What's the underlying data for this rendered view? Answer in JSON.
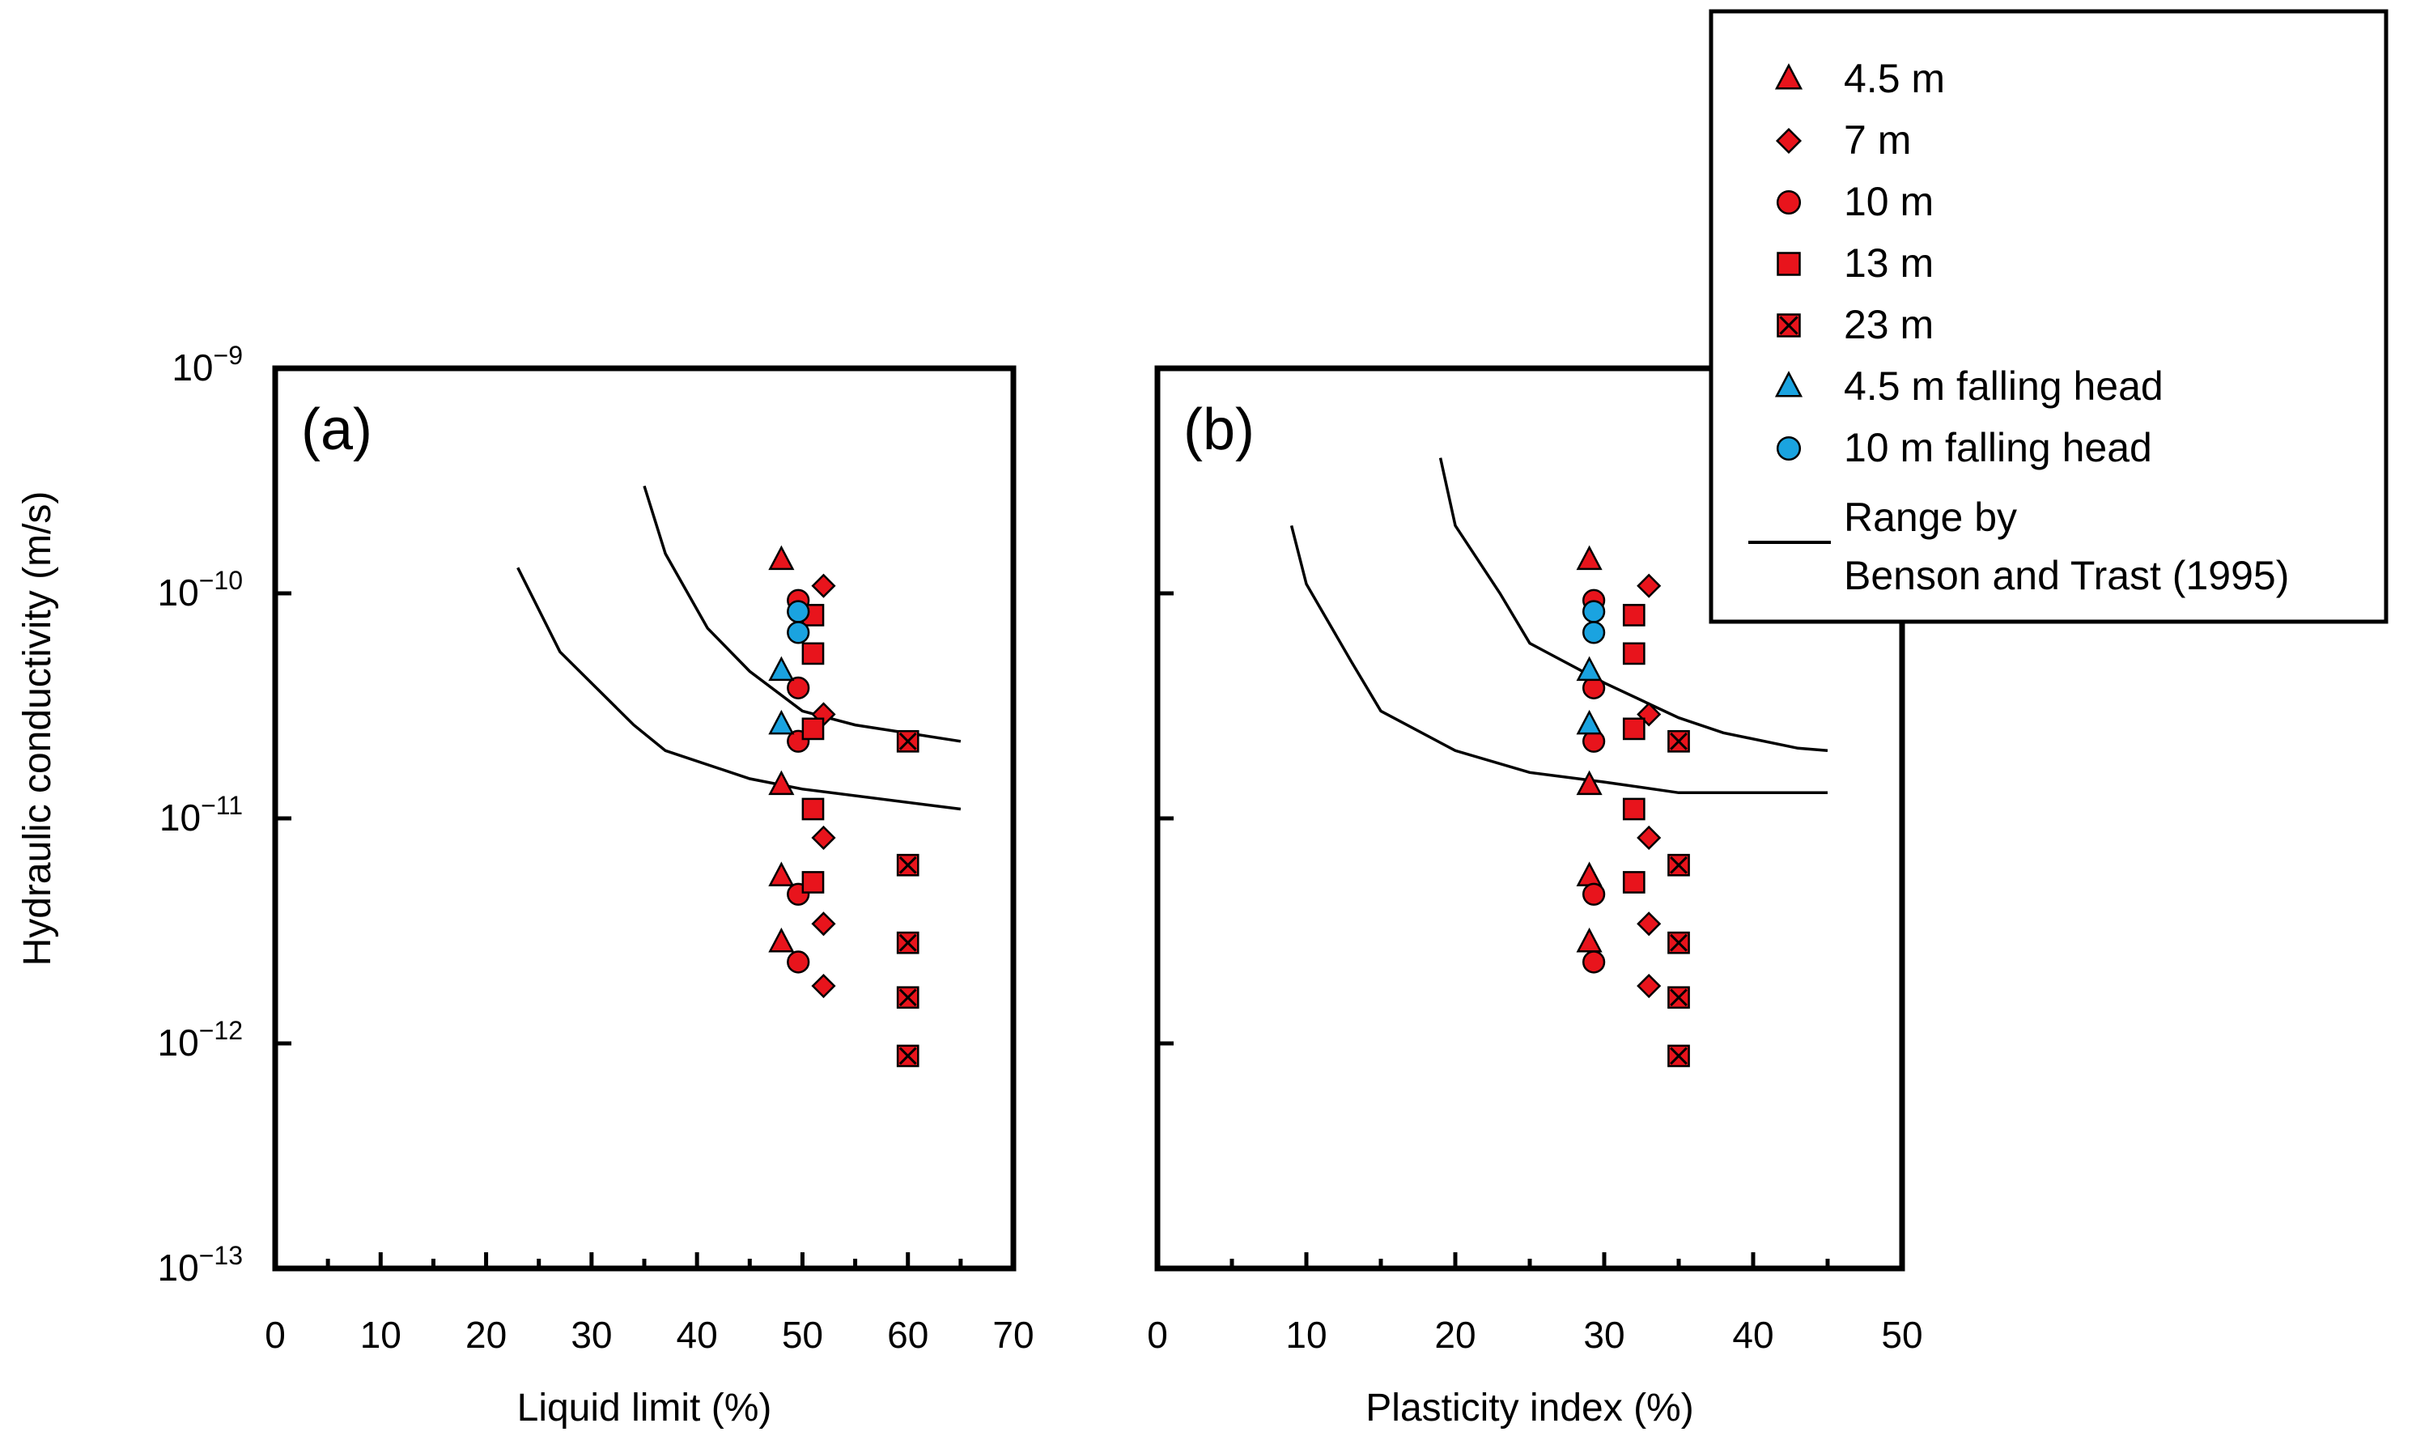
{
  "figure": {
    "ylabel": "Hydraulic conductivity (m/s)",
    "y_ticks": [
      {
        "base": "10",
        "exp": "−9"
      },
      {
        "base": "10",
        "exp": "−10"
      },
      {
        "base": "10",
        "exp": "−11"
      },
      {
        "base": "10",
        "exp": "−12"
      },
      {
        "base": "10",
        "exp": "−13"
      }
    ],
    "colors": {
      "red": "#e8141c",
      "blue": "#1aa3e0",
      "line": "#000000"
    }
  },
  "legend": {
    "items": [
      {
        "label": "4.5 m",
        "marker": "triangle",
        "color": "#e8141c"
      },
      {
        "label": "7 m",
        "marker": "diamond",
        "color": "#e8141c"
      },
      {
        "label": "10 m",
        "marker": "circle",
        "color": "#e8141c"
      },
      {
        "label": "13 m",
        "marker": "square",
        "color": "#e8141c"
      },
      {
        "label": "23 m",
        "marker": "square-x",
        "color": "#e8141c"
      },
      {
        "label": "4.5 m falling head",
        "marker": "triangle",
        "color": "#1aa3e0"
      },
      {
        "label": "10 m falling head",
        "marker": "circle",
        "color": "#1aa3e0"
      }
    ],
    "line_label_1": "Range by",
    "line_label_2": "Benson and Trast (1995)"
  },
  "chart_data": [
    {
      "type": "scatter",
      "panel_label": "(a)",
      "xlabel": "Liquid limit (%)",
      "ylabel": "Hydraulic conductivity (m/s)",
      "xlim": [
        0,
        70
      ],
      "x_ticks": [
        "0",
        "10",
        "20",
        "30",
        "40",
        "50",
        "60",
        "70"
      ],
      "y_scale": "log",
      "ylim_exp": [
        -13,
        -9
      ],
      "series": [
        {
          "name": "4.5 m",
          "marker": "triangle",
          "color": "#e8141c",
          "x": [
            48,
            48,
            48,
            48
          ],
          "y": [
            1.4e-10,
            1.4e-11,
            5.5e-12,
            2.8e-12
          ]
        },
        {
          "name": "7 m",
          "marker": "diamond",
          "color": "#e8141c",
          "x": [
            52,
            52,
            52,
            52,
            52
          ],
          "y": [
            1.08e-10,
            2.9e-11,
            8.2e-12,
            3.4e-12,
            1.8e-12
          ]
        },
        {
          "name": "10 m",
          "marker": "circle",
          "color": "#e8141c",
          "x": [
            49.6,
            49.6,
            49.6,
            49.6,
            49.6
          ],
          "y": [
            9.3e-11,
            3.8e-11,
            2.2e-11,
            4.6e-12,
            2.3e-12
          ]
        },
        {
          "name": "13 m",
          "marker": "square",
          "color": "#e8141c",
          "x": [
            51,
            51,
            51,
            51,
            51
          ],
          "y": [
            8e-11,
            5.4e-11,
            2.5e-11,
            1.1e-11,
            5.2e-12
          ]
        },
        {
          "name": "23 m",
          "marker": "square-x",
          "color": "#e8141c",
          "x": [
            60,
            60,
            60,
            60,
            60
          ],
          "y": [
            2.2e-11,
            6.2e-12,
            2.8e-12,
            1.6e-12,
            8.8e-13
          ]
        },
        {
          "name": "4.5 m falling head",
          "marker": "triangle",
          "color": "#1aa3e0",
          "x": [
            48,
            48
          ],
          "y": [
            4.5e-11,
            2.6e-11
          ]
        },
        {
          "name": "10 m falling head",
          "marker": "circle",
          "color": "#1aa3e0",
          "x": [
            49.6,
            49.6
          ],
          "y": [
            8.3e-11,
            6.7e-11
          ]
        }
      ],
      "range_lines": [
        {
          "name": "Benson and Trast (1995) upper",
          "x": [
            35,
            37,
            41,
            45,
            50,
            55,
            65
          ],
          "y": [
            3e-10,
            1.5e-10,
            7e-11,
            4.5e-11,
            3e-11,
            2.6e-11,
            2.2e-11
          ]
        },
        {
          "name": "Benson and Trast (1995) lower",
          "x": [
            23,
            27,
            34,
            37,
            45,
            50,
            65
          ],
          "y": [
            1.3e-10,
            5.5e-11,
            2.6e-11,
            2e-11,
            1.5e-11,
            1.35e-11,
            1.1e-11
          ]
        }
      ]
    },
    {
      "type": "scatter",
      "panel_label": "(b)",
      "xlabel": "Plasticity index (%)",
      "ylabel": "Hydraulic conductivity (m/s)",
      "xlim": [
        0,
        50
      ],
      "x_ticks": [
        "0",
        "10",
        "20",
        "30",
        "40",
        "50"
      ],
      "y_scale": "log",
      "ylim_exp": [
        -13,
        -9
      ],
      "series": [
        {
          "name": "4.5 m",
          "marker": "triangle",
          "color": "#e8141c",
          "x": [
            29,
            29,
            29,
            29
          ],
          "y": [
            1.4e-10,
            1.4e-11,
            5.5e-12,
            2.8e-12
          ]
        },
        {
          "name": "7 m",
          "marker": "diamond",
          "color": "#e8141c",
          "x": [
            33,
            33,
            33,
            33,
            33
          ],
          "y": [
            1.08e-10,
            2.9e-11,
            8.2e-12,
            3.4e-12,
            1.8e-12
          ]
        },
        {
          "name": "10 m",
          "marker": "circle",
          "color": "#e8141c",
          "x": [
            29.3,
            29.3,
            29.3,
            29.3,
            29.3
          ],
          "y": [
            9.3e-11,
            3.8e-11,
            2.2e-11,
            4.6e-12,
            2.3e-12
          ]
        },
        {
          "name": "13 m",
          "marker": "square",
          "color": "#e8141c",
          "x": [
            32,
            32,
            32,
            32,
            32
          ],
          "y": [
            8e-11,
            5.4e-11,
            2.5e-11,
            1.1e-11,
            5.2e-12
          ]
        },
        {
          "name": "23 m",
          "marker": "square-x",
          "color": "#e8141c",
          "x": [
            35,
            35,
            35,
            35,
            35
          ],
          "y": [
            2.2e-11,
            6.2e-12,
            2.8e-12,
            1.6e-12,
            8.8e-13
          ]
        },
        {
          "name": "4.5 m falling head",
          "marker": "triangle",
          "color": "#1aa3e0",
          "x": [
            29,
            29
          ],
          "y": [
            4.5e-11,
            2.6e-11
          ]
        },
        {
          "name": "10 m falling head",
          "marker": "circle",
          "color": "#1aa3e0",
          "x": [
            29.3,
            29.3
          ],
          "y": [
            8.3e-11,
            6.7e-11
          ]
        }
      ],
      "range_lines": [
        {
          "name": "Benson and Trast (1995) upper",
          "x": [
            19,
            20,
            23,
            25,
            30,
            35,
            38,
            43,
            45
          ],
          "y": [
            4e-10,
            2e-10,
            1e-10,
            6e-11,
            4e-11,
            2.8e-11,
            2.4e-11,
            2.05e-11,
            2e-11
          ]
        },
        {
          "name": "Benson and Trast (1995) lower",
          "x": [
            9,
            10,
            13,
            15,
            20,
            25,
            30,
            35,
            45
          ],
          "y": [
            2e-10,
            1.1e-10,
            5e-11,
            3e-11,
            2e-11,
            1.6e-11,
            1.45e-11,
            1.3e-11,
            1.3e-11
          ]
        }
      ]
    }
  ]
}
